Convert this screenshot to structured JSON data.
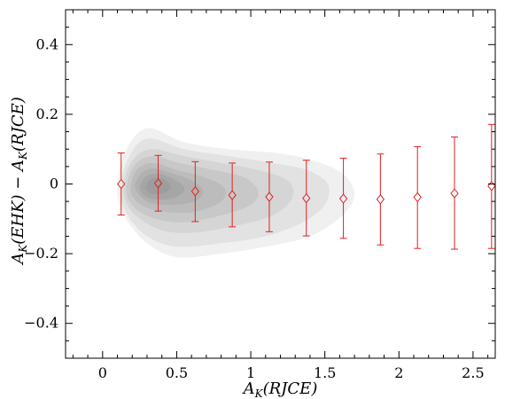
{
  "chart_data": {
    "type": "scatter",
    "title": "",
    "xlabel": "A_K(RJCE)",
    "ylabel": "A_K(EHK) − A_K(RJCE)",
    "xlim": [
      -0.25,
      2.65
    ],
    "ylim": [
      -0.5,
      0.5
    ],
    "grid": false,
    "legend": "none",
    "xticks": [
      0,
      0.5,
      1,
      1.5,
      2,
      2.5
    ],
    "xtick_labels": [
      "0",
      "0.5",
      "1",
      "1.5",
      "2",
      "2.5"
    ],
    "yticks": [
      -0.4,
      -0.2,
      0,
      0.2,
      0.4
    ],
    "ytick_labels": [
      "−0.4",
      "−0.2",
      "0",
      "0.2",
      "0.4"
    ],
    "series": [
      {
        "marker": "diamond",
        "color": "#e02020",
        "x": [
          0.125,
          0.375,
          0.625,
          0.875,
          1.125,
          1.375,
          1.625,
          1.875,
          2.125,
          2.375,
          2.625
        ],
        "y": [
          0.0,
          0.002,
          -0.021,
          -0.032,
          -0.037,
          -0.041,
          -0.042,
          -0.044,
          -0.038,
          -0.027,
          -0.006
        ],
        "err_low": [
          0.089,
          0.08,
          0.087,
          0.091,
          0.1,
          0.108,
          0.114,
          0.131,
          0.147,
          0.16,
          0.179
        ],
        "err_high": [
          0.089,
          0.08,
          0.085,
          0.092,
          0.1,
          0.109,
          0.116,
          0.13,
          0.145,
          0.162,
          0.177
        ]
      }
    ],
    "density_contours": {
      "color": "#6e6e6e",
      "levels": [
        {
          "opacity": 0.1,
          "pts": [
            [
              0.1,
              -0.02
            ],
            [
              0.15,
              0.09
            ],
            [
              0.3,
              0.16
            ],
            [
              0.55,
              0.12
            ],
            [
              0.85,
              0.1
            ],
            [
              1.15,
              0.09
            ],
            [
              1.4,
              0.07
            ],
            [
              1.62,
              0.03
            ],
            [
              1.7,
              -0.03
            ],
            [
              1.62,
              -0.09
            ],
            [
              1.4,
              -0.15
            ],
            [
              1.1,
              -0.18
            ],
            [
              0.8,
              -0.2
            ],
            [
              0.5,
              -0.21
            ],
            [
              0.3,
              -0.17
            ],
            [
              0.16,
              -0.1
            ]
          ]
        },
        {
          "opacity": 0.1,
          "pts": [
            [
              0.12,
              -0.02
            ],
            [
              0.17,
              0.07
            ],
            [
              0.3,
              0.13
            ],
            [
              0.55,
              0.1
            ],
            [
              0.85,
              0.08
            ],
            [
              1.15,
              0.06
            ],
            [
              1.38,
              0.04
            ],
            [
              1.52,
              0.0
            ],
            [
              1.5,
              -0.06
            ],
            [
              1.35,
              -0.11
            ],
            [
              1.1,
              -0.15
            ],
            [
              0.8,
              -0.17
            ],
            [
              0.5,
              -0.18
            ],
            [
              0.3,
              -0.15
            ],
            [
              0.17,
              -0.09
            ]
          ]
        },
        {
          "opacity": 0.11,
          "pts": [
            [
              0.14,
              -0.02
            ],
            [
              0.19,
              0.06
            ],
            [
              0.32,
              0.1
            ],
            [
              0.55,
              0.08
            ],
            [
              0.8,
              0.06
            ],
            [
              1.05,
              0.04
            ],
            [
              1.25,
              0.01
            ],
            [
              1.28,
              -0.04
            ],
            [
              1.15,
              -0.09
            ],
            [
              0.9,
              -0.12
            ],
            [
              0.6,
              -0.14
            ],
            [
              0.38,
              -0.13
            ],
            [
              0.2,
              -0.08
            ]
          ]
        },
        {
          "opacity": 0.12,
          "pts": [
            [
              0.16,
              -0.02
            ],
            [
              0.21,
              0.05
            ],
            [
              0.33,
              0.08
            ],
            [
              0.52,
              0.06
            ],
            [
              0.75,
              0.04
            ],
            [
              0.95,
              0.02
            ],
            [
              1.05,
              -0.02
            ],
            [
              1.0,
              -0.06
            ],
            [
              0.8,
              -0.09
            ],
            [
              0.55,
              -0.11
            ],
            [
              0.36,
              -0.1
            ],
            [
              0.22,
              -0.07
            ]
          ]
        },
        {
          "opacity": 0.13,
          "pts": [
            [
              0.19,
              -0.02
            ],
            [
              0.23,
              0.04
            ],
            [
              0.34,
              0.06
            ],
            [
              0.5,
              0.04
            ],
            [
              0.68,
              0.02
            ],
            [
              0.82,
              -0.01
            ],
            [
              0.8,
              -0.05
            ],
            [
              0.62,
              -0.08
            ],
            [
              0.42,
              -0.08
            ],
            [
              0.26,
              -0.06
            ]
          ]
        },
        {
          "opacity": 0.14,
          "pts": [
            [
              0.22,
              -0.01
            ],
            [
              0.26,
              0.03
            ],
            [
              0.35,
              0.045
            ],
            [
              0.47,
              0.03
            ],
            [
              0.6,
              0.01
            ],
            [
              0.68,
              -0.02
            ],
            [
              0.62,
              -0.05
            ],
            [
              0.45,
              -0.06
            ],
            [
              0.3,
              -0.05
            ]
          ]
        },
        {
          "opacity": 0.15,
          "pts": [
            [
              0.25,
              -0.01
            ],
            [
              0.29,
              0.02
            ],
            [
              0.36,
              0.03
            ],
            [
              0.45,
              0.02
            ],
            [
              0.53,
              0.0
            ],
            [
              0.55,
              -0.02
            ],
            [
              0.48,
              -0.04
            ],
            [
              0.37,
              -0.045
            ],
            [
              0.29,
              -0.035
            ]
          ]
        },
        {
          "opacity": 0.16,
          "pts": [
            [
              0.29,
              -0.01
            ],
            [
              0.32,
              0.012
            ],
            [
              0.37,
              0.018
            ],
            [
              0.43,
              0.01
            ],
            [
              0.46,
              -0.005
            ],
            [
              0.44,
              -0.02
            ],
            [
              0.38,
              -0.03
            ],
            [
              0.32,
              -0.025
            ]
          ]
        }
      ]
    }
  }
}
